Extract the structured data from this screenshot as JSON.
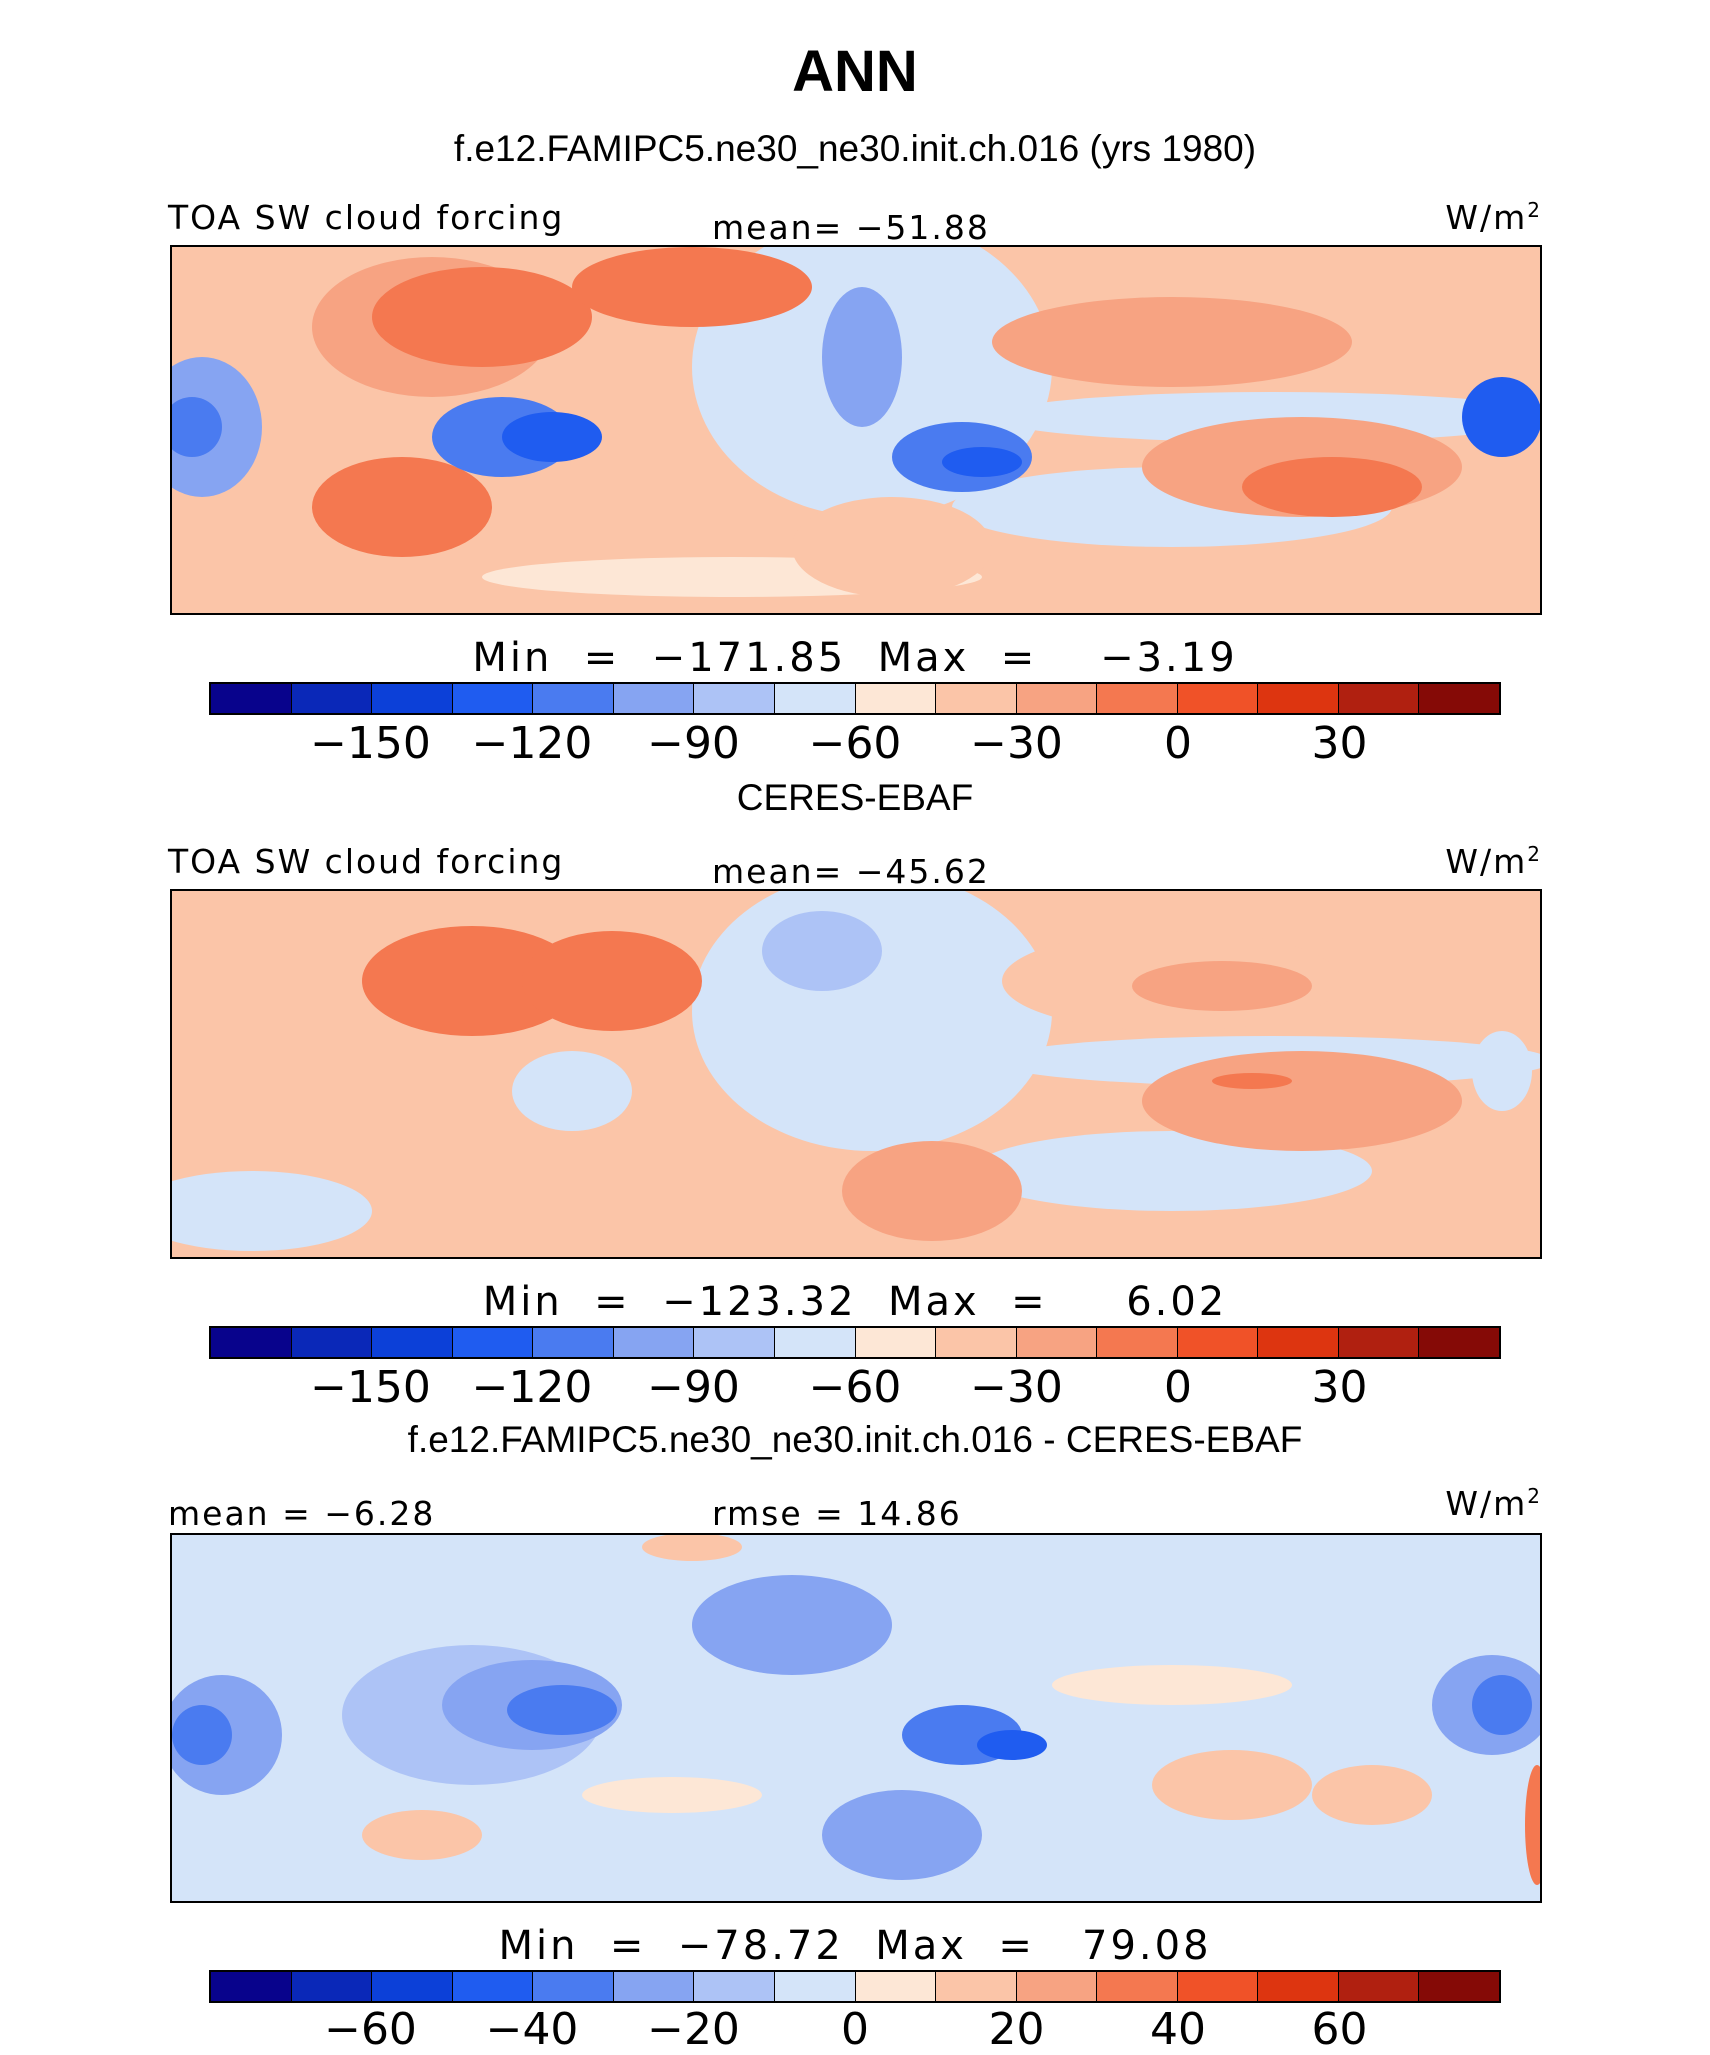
{
  "title": "ANN",
  "palette": [
    "#08038c",
    "#0a28b8",
    "#0c40d8",
    "#1f5cf0",
    "#4a7bf0",
    "#86a4f2",
    "#adc3f6",
    "#d4e4f9",
    "#fde7d6",
    "#fbc5a8",
    "#f7a382",
    "#f47850",
    "#f05228",
    "#dd3510",
    "#b02010",
    "#850a06"
  ],
  "panels": [
    {
      "title": "f.e12.FAMIPC5.ne30_ne30.init.ch.016 (yrs 1980)",
      "left_label": "TOA SW cloud forcing",
      "center_label": "mean=  −51.88",
      "units": "W/m",
      "units_sup": "2",
      "minmax": "Min  =  −171.85  Max  =    −3.19",
      "ticks": [
        "−150",
        "−120",
        "−90",
        "−60",
        "−30",
        "0",
        "30"
      ]
    },
    {
      "title": "CERES-EBAF",
      "left_label": "TOA SW cloud forcing",
      "center_label": "mean=  −45.62",
      "units": "W/m",
      "units_sup": "2",
      "minmax": "Min  =  −123.32  Max  =     6.02",
      "ticks": [
        "−150",
        "−120",
        "−90",
        "−60",
        "−30",
        "0",
        "30"
      ]
    },
    {
      "title": "f.e12.FAMIPC5.ne30_ne30.init.ch.016 - CERES-EBAF",
      "left_label": "mean  =   −6.28",
      "center_label": "rmse  =   14.86",
      "units": "W/m",
      "units_sup": "2",
      "minmax": "Min  =  −78.72  Max  =   79.08",
      "ticks": [
        "−60",
        "−40",
        "−20",
        "0",
        "20",
        "40",
        "60"
      ]
    }
  ]
}
